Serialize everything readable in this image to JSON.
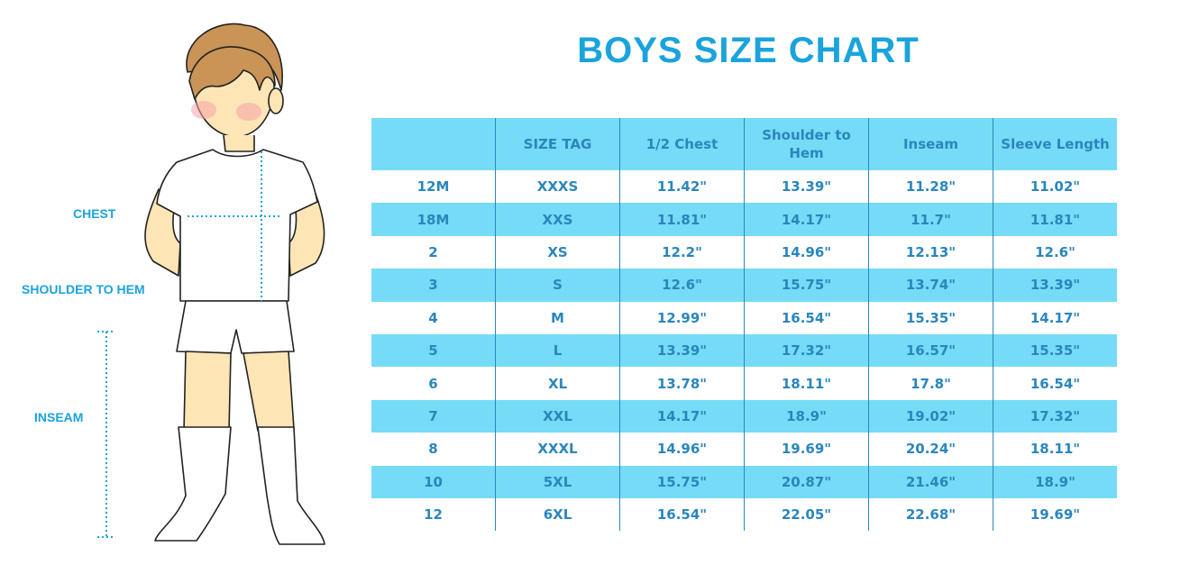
{
  "title": "BOYS SIZE CHART",
  "measure_labels": {
    "chest": "CHEST",
    "shoulder_to_hem": "SHOULDER TO HEM",
    "inseam": "INSEAM"
  },
  "colors": {
    "accent": "#1ba3dc",
    "row_band": "#76dbf6",
    "table_text": "#2a86bd"
  },
  "table": {
    "headers": [
      "",
      "SIZE TAG",
      "1/2 Chest",
      "Shoulder to Hem",
      "Inseam",
      "Sleeve Length"
    ],
    "rows": [
      [
        "12M",
        "XXXS",
        "11.42\"",
        "13.39\"",
        "11.28\"",
        "11.02\""
      ],
      [
        "18M",
        "XXS",
        "11.81\"",
        "14.17\"",
        "11.7\"",
        "11.81\""
      ],
      [
        "2",
        "XS",
        "12.2\"",
        "14.96\"",
        "12.13\"",
        "12.6\""
      ],
      [
        "3",
        "S",
        "12.6\"",
        "15.75\"",
        "13.74\"",
        "13.39\""
      ],
      [
        "4",
        "M",
        "12.99\"",
        "16.54\"",
        "15.35\"",
        "14.17\""
      ],
      [
        "5",
        "L",
        "13.39\"",
        "17.32\"",
        "16.57\"",
        "15.35\""
      ],
      [
        "6",
        "XL",
        "13.78\"",
        "18.11\"",
        "17.8\"",
        "16.54\""
      ],
      [
        "7",
        "XXL",
        "14.17\"",
        "18.9\"",
        "19.02\"",
        "17.32\""
      ],
      [
        "8",
        "XXXL",
        "14.96\"",
        "19.69\"",
        "20.24\"",
        "18.11\""
      ],
      [
        "10",
        "5XL",
        "15.75\"",
        "20.87\"",
        "21.46\"",
        "18.9\""
      ],
      [
        "12",
        "6XL",
        "16.54\"",
        "22.05\"",
        "22.68\"",
        "19.69\""
      ]
    ]
  }
}
